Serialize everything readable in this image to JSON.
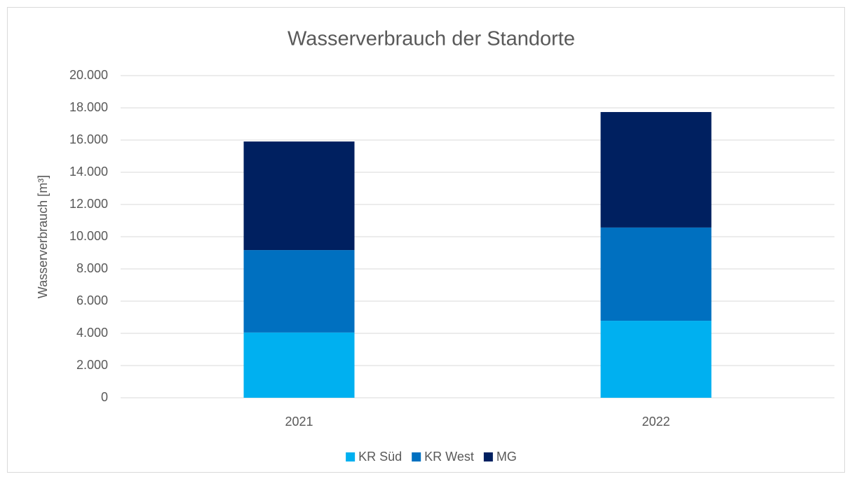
{
  "chart_data": {
    "type": "stacked_bar",
    "title": "Wasserverbrauch  der Standorte",
    "y_label": "Wasserverbrauch [m³]",
    "categories": [
      "2021",
      "2022"
    ],
    "series": [
      {
        "name": "KR Süd",
        "color": "#00b0f0",
        "values": [
          4050,
          4780
        ]
      },
      {
        "name": "KR West",
        "color": "#0070c0",
        "values": [
          5120,
          5790
        ]
      },
      {
        "name": "MG",
        "color": "#002060",
        "values": [
          6740,
          7170
        ]
      }
    ],
    "ylim": [
      0,
      20000
    ],
    "yticks": [
      0,
      {
        "value": 2000,
        "label": "2.000"
      },
      {
        "value": 4000,
        "label": "4.000"
      },
      {
        "value": 6000,
        "label": "6.000"
      },
      {
        "value": 8000,
        "label": "8.000"
      },
      {
        "value": 10000,
        "label": "10.000"
      },
      {
        "value": 12000,
        "label": "12.000"
      },
      {
        "value": 14000,
        "label": "14.000"
      },
      {
        "value": 16000,
        "label": "16.000"
      },
      {
        "value": 18000,
        "label": "18.000"
      },
      {
        "value": 20000,
        "label": "20.000"
      }
    ],
    "grid": true,
    "legend": "bottom"
  }
}
